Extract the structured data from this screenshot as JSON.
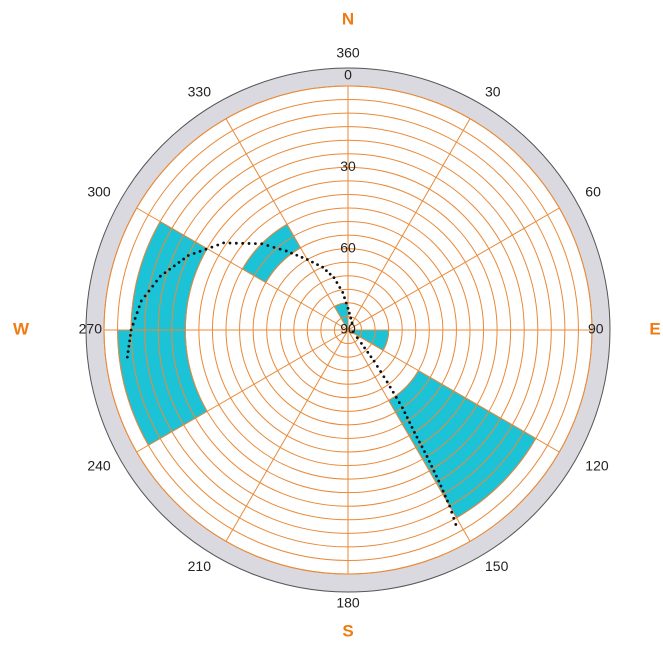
{
  "chart_data": {
    "type": "polar-rose",
    "direction_labels": {
      "north": "N",
      "east": "E",
      "south": "S",
      "west": "W"
    },
    "azimuth_ticks": [
      {
        "angle": 0,
        "label": "0"
      },
      {
        "angle": 30,
        "label": "30"
      },
      {
        "angle": 60,
        "label": "60"
      },
      {
        "angle": 90,
        "label": "90"
      },
      {
        "angle": 120,
        "label": "120"
      },
      {
        "angle": 150,
        "label": "150"
      },
      {
        "angle": 180,
        "label": "180"
      },
      {
        "angle": 210,
        "label": "210"
      },
      {
        "angle": 240,
        "label": "240"
      },
      {
        "angle": 270,
        "label": "270"
      },
      {
        "angle": 300,
        "label": "300"
      },
      {
        "angle": 330,
        "label": "330"
      }
    ],
    "north_extra_label": "360",
    "radial_ticks": [
      {
        "value": 30,
        "label": "30"
      },
      {
        "value": 60,
        "label": "60"
      },
      {
        "value": 90,
        "label": "90"
      }
    ],
    "radial_axis": {
      "center_value": 90,
      "rim_value": 0,
      "ring_step": 5
    },
    "sector_step": 30,
    "petals": [
      {
        "from_deg": 90,
        "to_deg": 120,
        "inner": 90,
        "outer": 75
      },
      {
        "from_deg": 120,
        "to_deg": 150,
        "inner": 60,
        "outer": 10
      },
      {
        "from_deg": 240,
        "to_deg": 270,
        "inner": 30,
        "outer": 5
      },
      {
        "from_deg": 270,
        "to_deg": 300,
        "inner": 30,
        "outer": 10
      },
      {
        "from_deg": 300,
        "to_deg": 330,
        "inner": 55,
        "outer": 45
      },
      {
        "from_deg": 330,
        "to_deg": 360,
        "inner": 90,
        "outer": 80
      }
    ],
    "trajectory": [
      {
        "az": 263,
        "el": 8
      },
      {
        "az": 270,
        "el": 10
      },
      {
        "az": 278,
        "el": 13
      },
      {
        "az": 286,
        "el": 18
      },
      {
        "az": 295,
        "el": 25
      },
      {
        "az": 305,
        "el": 34
      },
      {
        "az": 315,
        "el": 45
      },
      {
        "az": 322,
        "el": 53
      },
      {
        "az": 330,
        "el": 60
      },
      {
        "az": 338,
        "el": 65
      },
      {
        "az": 345,
        "el": 70
      },
      {
        "az": 352,
        "el": 76
      },
      {
        "az": 0,
        "el": 82
      },
      {
        "az": 30,
        "el": 87
      },
      {
        "az": 110,
        "el": 88
      },
      {
        "az": 135,
        "el": 83
      },
      {
        "az": 140,
        "el": 75
      },
      {
        "az": 143,
        "el": 66
      },
      {
        "az": 145,
        "el": 55
      },
      {
        "az": 147,
        "el": 45
      },
      {
        "az": 148,
        "el": 35
      },
      {
        "az": 149,
        "el": 25
      },
      {
        "az": 150,
        "el": 15
      },
      {
        "az": 151,
        "el": 8
      }
    ],
    "colors": {
      "grid": "#e88a3a",
      "petal_fill": "#1cc3d6",
      "petal_stroke": "#6d8f96",
      "rim_band": "#d9d9df",
      "trajectory": "#111111",
      "direction_label": "#ef7b12"
    }
  }
}
